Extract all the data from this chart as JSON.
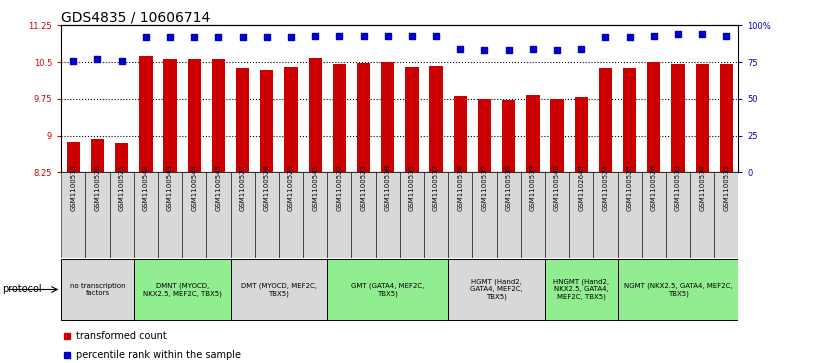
{
  "title": "GDS4835 / 10606714",
  "samples": [
    "GSM1100519",
    "GSM1100520",
    "GSM1100521",
    "GSM1100542",
    "GSM1100543",
    "GSM1100544",
    "GSM1100545",
    "GSM1100527",
    "GSM1100528",
    "GSM1100529",
    "GSM1100541",
    "GSM1100522",
    "GSM1100523",
    "GSM1100530",
    "GSM1100531",
    "GSM1100532",
    "GSM1100536",
    "GSM1100537",
    "GSM1100538",
    "GSM1100539",
    "GSM1100540",
    "GSM1102649",
    "GSM1100524",
    "GSM1100525",
    "GSM1100526",
    "GSM1100533",
    "GSM1100534",
    "GSM1100535"
  ],
  "bar_values": [
    8.87,
    8.93,
    8.86,
    10.62,
    10.56,
    10.57,
    10.57,
    10.38,
    10.35,
    10.4,
    10.58,
    10.46,
    10.48,
    10.5,
    10.4,
    10.43,
    9.8,
    9.74,
    9.72,
    9.84,
    9.74,
    9.78,
    10.38,
    10.38,
    10.5,
    10.46,
    10.47,
    10.47
  ],
  "percentile_values": [
    76,
    77,
    76,
    92,
    92,
    92,
    92,
    92,
    92,
    92,
    93,
    93,
    93,
    93,
    93,
    93,
    84,
    83,
    83,
    84,
    83,
    84,
    92,
    92,
    93,
    94,
    94,
    93
  ],
  "bar_color": "#CC0000",
  "dot_color": "#0000CC",
  "ylim_left": [
    8.25,
    11.25
  ],
  "yticks_left": [
    8.25,
    9.0,
    9.75,
    10.5,
    11.25
  ],
  "ytick_labels_left": [
    "8.25",
    "9",
    "9.75",
    "10.5",
    "11.25"
  ],
  "yticks_right_pct": [
    0,
    25,
    50,
    75,
    100
  ],
  "ytick_labels_right": [
    "0",
    "25",
    "50",
    "75",
    "100%"
  ],
  "hlines": [
    9.0,
    9.75,
    10.5
  ],
  "sample_box_color": "#d8d8d8",
  "protocol_groups": [
    {
      "label": "no transcription\nfactors",
      "color": "#d8d8d8",
      "i0": 0,
      "i1": 3
    },
    {
      "label": "DMNT (MYOCD,\nNKX2.5, MEF2C, TBX5)",
      "color": "#90EE90",
      "i0": 3,
      "i1": 7
    },
    {
      "label": "DMT (MYOCD, MEF2C,\nTBX5)",
      "color": "#d8d8d8",
      "i0": 7,
      "i1": 11
    },
    {
      "label": "GMT (GATA4, MEF2C,\nTBX5)",
      "color": "#90EE90",
      "i0": 11,
      "i1": 16
    },
    {
      "label": "HGMT (Hand2,\nGATA4, MEF2C,\nTBX5)",
      "color": "#d8d8d8",
      "i0": 16,
      "i1": 20
    },
    {
      "label": "HNGMT (Hand2,\nNKX2.5, GATA4,\nMEF2C, TBX5)",
      "color": "#90EE90",
      "i0": 20,
      "i1": 23
    },
    {
      "label": "NGMT (NKX2.5, GATA4, MEF2C,\nTBX5)",
      "color": "#90EE90",
      "i0": 23,
      "i1": 28
    }
  ],
  "legend_label_red": "transformed count",
  "legend_label_blue": "percentile rank within the sample",
  "protocol_label": "protocol",
  "title_fontsize": 10,
  "tick_fontsize": 6,
  "bar_width": 0.55
}
